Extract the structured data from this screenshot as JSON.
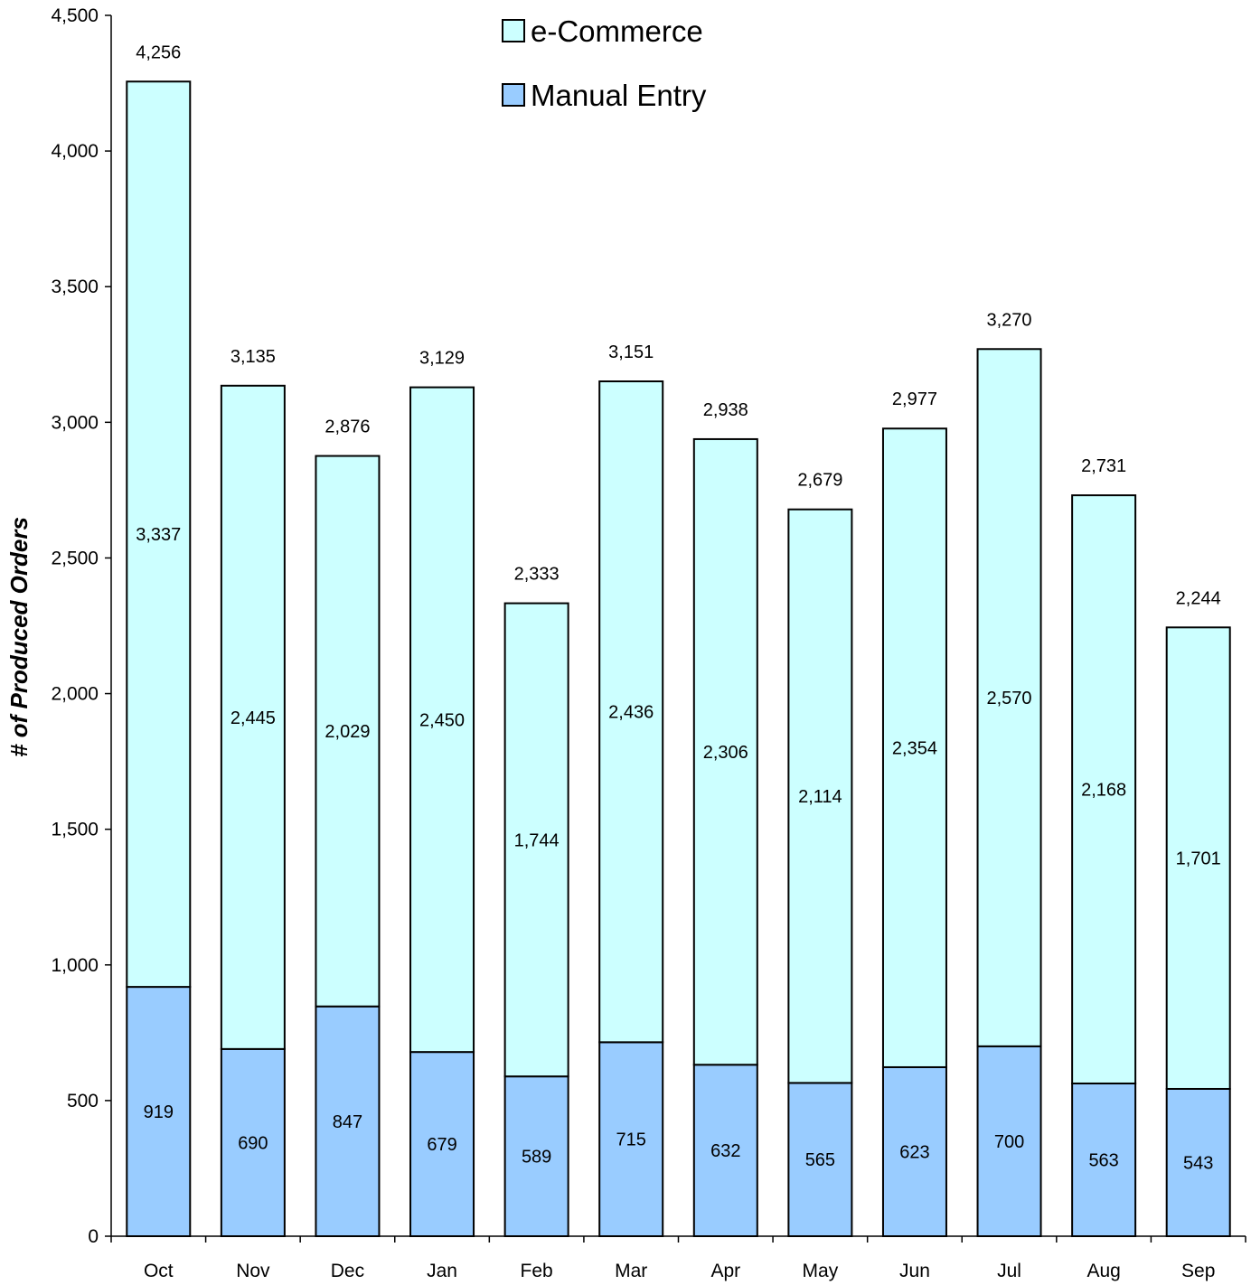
{
  "chart_data": {
    "type": "bar",
    "stacked": true,
    "categories": [
      "Oct",
      "Nov",
      "Dec",
      "Jan",
      "Feb",
      "Mar",
      "Apr",
      "May",
      "Jun",
      "Jul",
      "Aug",
      "Sep"
    ],
    "series": [
      {
        "name": "Manual Entry",
        "color": "#99ccff",
        "values": [
          919,
          690,
          847,
          679,
          589,
          715,
          632,
          565,
          623,
          700,
          563,
          543
        ],
        "labels": [
          "919",
          "690",
          "847",
          "679",
          "589",
          "715",
          "632",
          "565",
          "623",
          "700",
          "563",
          "543"
        ]
      },
      {
        "name": "e-Commerce",
        "color": "#ccffff",
        "values": [
          3337,
          2445,
          2029,
          2450,
          1744,
          2436,
          2306,
          2114,
          2354,
          2570,
          2168,
          1701
        ],
        "labels": [
          "3,337",
          "2,445",
          "2,029",
          "2,450",
          "1,744",
          "2,436",
          "2,306",
          "2,114",
          "2,354",
          "2,570",
          "2,168",
          "1,701"
        ]
      }
    ],
    "totals": [
      4256,
      3135,
      2876,
      3129,
      2333,
      3151,
      2938,
      2679,
      2977,
      3270,
      2731,
      2244
    ],
    "total_labels": [
      "4,256",
      "3,135",
      "2,876",
      "3,129",
      "2,333",
      "3,151",
      "2,938",
      "2,679",
      "2,977",
      "3,270",
      "2,731",
      "2,244"
    ],
    "ylabel": "# of Produced Orders",
    "xlabel": "",
    "ylim": [
      0,
      4500
    ],
    "yticks": [
      0,
      500,
      1000,
      1500,
      2000,
      2500,
      3000,
      3500,
      4000,
      4500
    ],
    "ytick_labels": [
      "0",
      "500",
      "1,000",
      "1,500",
      "2,000",
      "2,500",
      "3,000",
      "3,500",
      "4,000",
      "4,500"
    ],
    "legend": {
      "placement": "top-center",
      "entries": [
        "e-Commerce",
        "Manual Entry"
      ]
    },
    "grid": false
  }
}
